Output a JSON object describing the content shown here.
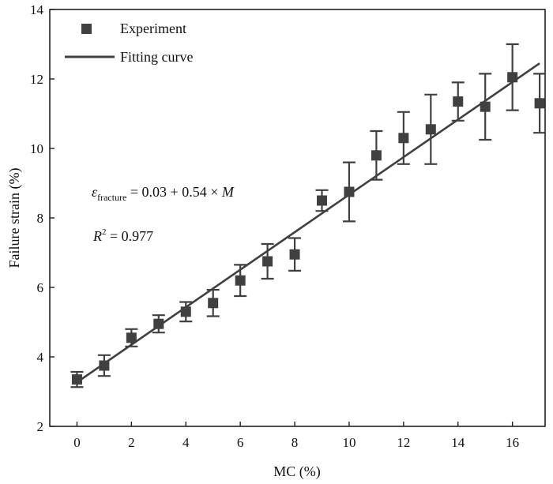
{
  "chart_data": {
    "type": "scatter",
    "xlabel": "MC (%)",
    "ylabel": "Failure strain (%)",
    "xlim": [
      -1,
      17.2
    ],
    "ylim": [
      2,
      14
    ],
    "xticks": [
      0,
      2,
      4,
      6,
      8,
      10,
      12,
      14,
      16
    ],
    "yticks": [
      2,
      4,
      6,
      8,
      10,
      12,
      14
    ],
    "grid": false,
    "legend_position": "top-left",
    "series": [
      {
        "name": "Experiment",
        "marker": "square",
        "color": "#404040",
        "points": [
          {
            "x": 0,
            "y": 3.35,
            "err": 0.22
          },
          {
            "x": 1,
            "y": 3.75,
            "err": 0.3
          },
          {
            "x": 2,
            "y": 4.55,
            "err": 0.25
          },
          {
            "x": 3,
            "y": 4.95,
            "err": 0.25
          },
          {
            "x": 4,
            "y": 5.3,
            "err": 0.28
          },
          {
            "x": 5,
            "y": 5.55,
            "err": 0.38
          },
          {
            "x": 6,
            "y": 6.2,
            "err": 0.45
          },
          {
            "x": 7,
            "y": 6.75,
            "err": 0.5
          },
          {
            "x": 8,
            "y": 6.95,
            "err": 0.47
          },
          {
            "x": 9,
            "y": 8.5,
            "err": 0.3
          },
          {
            "x": 10,
            "y": 8.75,
            "err": 0.85
          },
          {
            "x": 11,
            "y": 9.8,
            "err": 0.7
          },
          {
            "x": 12,
            "y": 10.3,
            "err": 0.75
          },
          {
            "x": 13,
            "y": 10.55,
            "err": 1.0
          },
          {
            "x": 14,
            "y": 11.35,
            "err": 0.55
          },
          {
            "x": 15,
            "y": 11.2,
            "err": 0.95
          },
          {
            "x": 16,
            "y": 12.05,
            "err": 0.95
          },
          {
            "x": 17,
            "y": 11.3,
            "err": 0.85
          }
        ]
      },
      {
        "name": "Fitting curve",
        "type": "line",
        "color": "#404040",
        "x": [
          0,
          17
        ],
        "y": [
          3.27,
          12.45
        ]
      }
    ],
    "annotations": [
      {
        "parts": [
          "ε",
          "fracture",
          " = 0.03 + 0.54 × ",
          "M"
        ]
      },
      {
        "parts": [
          "R",
          "2",
          " = 0.977"
        ]
      }
    ]
  }
}
